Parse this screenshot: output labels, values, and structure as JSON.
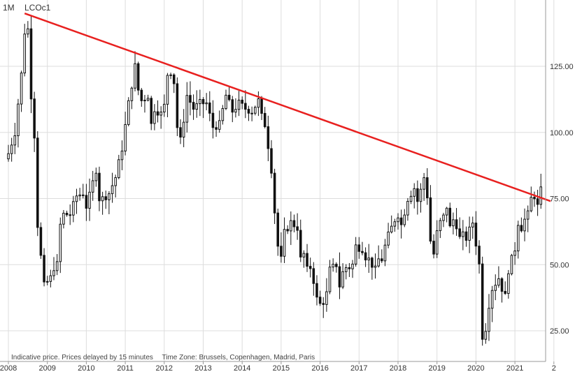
{
  "header": {
    "interval": "1M",
    "symbol": "LCOc1"
  },
  "footer": {
    "note": "Indicative price. Prices delayed by 15 minutes",
    "timezone": "Time Zone: Brussels, Copenhagen, Madrid, Paris"
  },
  "colors": {
    "candle": "#111111",
    "trendline": "#e8201f",
    "grid": "#dddddd",
    "axis": "#999999"
  },
  "chart_data": {
    "type": "candlestick",
    "title": "",
    "symbol": "LCOc1",
    "interval": "1M",
    "xlabel": "",
    "ylabel": "",
    "xlim": [
      "2008-01",
      "2021-12"
    ],
    "ylim": [
      14,
      150
    ],
    "grid": true,
    "x_ticks": [
      "2008",
      "2009",
      "2010",
      "2011",
      "2012",
      "2013",
      "2014",
      "2015",
      "2016",
      "2017",
      "2018",
      "2019",
      "2020",
      "2021",
      "2"
    ],
    "y_ticks": [
      "25.00",
      "50.00",
      "75.00",
      "100.00",
      "125.00"
    ],
    "y_tick_values": [
      25,
      50,
      75,
      100,
      125
    ],
    "anchors": [
      [
        "2008-01",
        92
      ],
      [
        "2008-03",
        100
      ],
      [
        "2008-05",
        122
      ],
      [
        "2008-06",
        138
      ],
      [
        "2008-07",
        139
      ],
      [
        "2008-08",
        114
      ],
      [
        "2008-09",
        99
      ],
      [
        "2008-10",
        65
      ],
      [
        "2008-11",
        53
      ],
      [
        "2008-12",
        42
      ],
      [
        "2009-02",
        45
      ],
      [
        "2009-03",
        49
      ],
      [
        "2009-04",
        50
      ],
      [
        "2009-05",
        65
      ],
      [
        "2009-06",
        69
      ],
      [
        "2009-08",
        69
      ],
      [
        "2009-10",
        76
      ],
      [
        "2009-12",
        77
      ],
      [
        "2010-01",
        72
      ],
      [
        "2010-02",
        76
      ],
      [
        "2010-04",
        86
      ],
      [
        "2010-05",
        75
      ],
      [
        "2010-06",
        75
      ],
      [
        "2010-08",
        77
      ],
      [
        "2010-10",
        83
      ],
      [
        "2010-12",
        94
      ],
      [
        "2011-02",
        111
      ],
      [
        "2011-04",
        125
      ],
      [
        "2011-05",
        116
      ],
      [
        "2011-06",
        112
      ],
      [
        "2011-08",
        114
      ],
      [
        "2011-09",
        103
      ],
      [
        "2011-10",
        109
      ],
      [
        "2011-12",
        107
      ],
      [
        "2012-01",
        110
      ],
      [
        "2012-02",
        122
      ],
      [
        "2012-03",
        123
      ],
      [
        "2012-04",
        119
      ],
      [
        "2012-05",
        102
      ],
      [
        "2012-06",
        97
      ],
      [
        "2012-07",
        105
      ],
      [
        "2012-08",
        114
      ],
      [
        "2012-10",
        109
      ],
      [
        "2012-12",
        111
      ],
      [
        "2013-02",
        111
      ],
      [
        "2013-04",
        102
      ],
      [
        "2013-06",
        103
      ],
      [
        "2013-08",
        114
      ],
      [
        "2013-10",
        108
      ],
      [
        "2013-12",
        111
      ],
      [
        "2014-02",
        109
      ],
      [
        "2014-04",
        108
      ],
      [
        "2014-06",
        112
      ],
      [
        "2014-07",
        106
      ],
      [
        "2014-08",
        103
      ],
      [
        "2014-09",
        95
      ],
      [
        "2014-10",
        86
      ],
      [
        "2014-11",
        70
      ],
      [
        "2014-12",
        57
      ],
      [
        "2015-01",
        52
      ],
      [
        "2015-02",
        62
      ],
      [
        "2015-04",
        66
      ],
      [
        "2015-05",
        65
      ],
      [
        "2015-06",
        64
      ],
      [
        "2015-07",
        52
      ],
      [
        "2015-08",
        54
      ],
      [
        "2015-09",
        48
      ],
      [
        "2015-10",
        49
      ],
      [
        "2015-11",
        44
      ],
      [
        "2015-12",
        37
      ],
      [
        "2016-01",
        35
      ],
      [
        "2016-02",
        36
      ],
      [
        "2016-03",
        39
      ],
      [
        "2016-04",
        48
      ],
      [
        "2016-05",
        49
      ],
      [
        "2016-06",
        50
      ],
      [
        "2016-07",
        42
      ],
      [
        "2016-08",
        47
      ],
      [
        "2016-09",
        49
      ],
      [
        "2016-10",
        49
      ],
      [
        "2016-11",
        50
      ],
      [
        "2016-12",
        57
      ],
      [
        "2017-02",
        56
      ],
      [
        "2017-03",
        53
      ],
      [
        "2017-04",
        52
      ],
      [
        "2017-05",
        50
      ],
      [
        "2017-06",
        48
      ],
      [
        "2017-07",
        52
      ],
      [
        "2017-08",
        52
      ],
      [
        "2017-09",
        57
      ],
      [
        "2017-10",
        61
      ],
      [
        "2017-11",
        64
      ],
      [
        "2017-12",
        67
      ],
      [
        "2018-01",
        69
      ],
      [
        "2018-02",
        65
      ],
      [
        "2018-03",
        70
      ],
      [
        "2018-04",
        75
      ],
      [
        "2018-05",
        77
      ],
      [
        "2018-06",
        79
      ],
      [
        "2018-07",
        74
      ],
      [
        "2018-08",
        78
      ],
      [
        "2018-09",
        83
      ],
      [
        "2018-10",
        76
      ],
      [
        "2018-11",
        59
      ],
      [
        "2018-12",
        54
      ],
      [
        "2019-01",
        62
      ],
      [
        "2019-02",
        66
      ],
      [
        "2019-03",
        68
      ],
      [
        "2019-04",
        72
      ],
      [
        "2019-05",
        64
      ],
      [
        "2019-06",
        67
      ],
      [
        "2019-07",
        65
      ],
      [
        "2019-08",
        60
      ],
      [
        "2019-09",
        61
      ],
      [
        "2019-10",
        60
      ],
      [
        "2019-11",
        63
      ],
      [
        "2019-12",
        66
      ],
      [
        "2020-01",
        58
      ],
      [
        "2020-02",
        50
      ],
      [
        "2020-03",
        23
      ],
      [
        "2020-04",
        26
      ],
      [
        "2020-05",
        35
      ],
      [
        "2020-06",
        41
      ],
      [
        "2020-07",
        43
      ],
      [
        "2020-08",
        45
      ],
      [
        "2020-09",
        41
      ],
      [
        "2020-10",
        38
      ],
      [
        "2020-11",
        48
      ],
      [
        "2020-12",
        52
      ],
      [
        "2021-01",
        56
      ],
      [
        "2021-02",
        66
      ],
      [
        "2021-03",
        64
      ],
      [
        "2021-04",
        67
      ],
      [
        "2021-05",
        69
      ],
      [
        "2021-06",
        75
      ],
      [
        "2021-07",
        76
      ],
      [
        "2021-08",
        72
      ],
      [
        "2021-09",
        78
      ]
    ],
    "trendline": {
      "from": [
        "2008-06",
        145
      ],
      "to": [
        "2021-12",
        74
      ]
    }
  }
}
